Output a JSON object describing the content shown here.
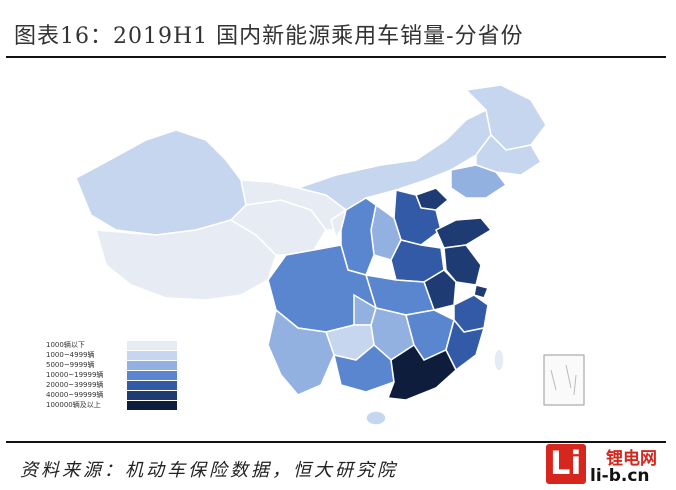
{
  "title": "图表16：2019H1 国内新能源乘用车销量-分省份",
  "source": "资料来源：机动车保险数据，恒大研究院",
  "logo": {
    "mark": "Li",
    "line1": "锂电网",
    "line2": "li-b.cn"
  },
  "legend": [
    {
      "label": "1000辆以下",
      "color": "#e7ecf4"
    },
    {
      "label": "1000~4999辆",
      "color": "#c6d6ee"
    },
    {
      "label": "5000~9999辆",
      "color": "#92b1e0"
    },
    {
      "label": "10000~19999辆",
      "color": "#5a86cf"
    },
    {
      "label": "20000~39999辆",
      "color": "#335aa6"
    },
    {
      "label": "40000~99999辆",
      "color": "#1e3b73"
    },
    {
      "label": "100000辆及以上",
      "color": "#0f1d3c"
    }
  ]
}
